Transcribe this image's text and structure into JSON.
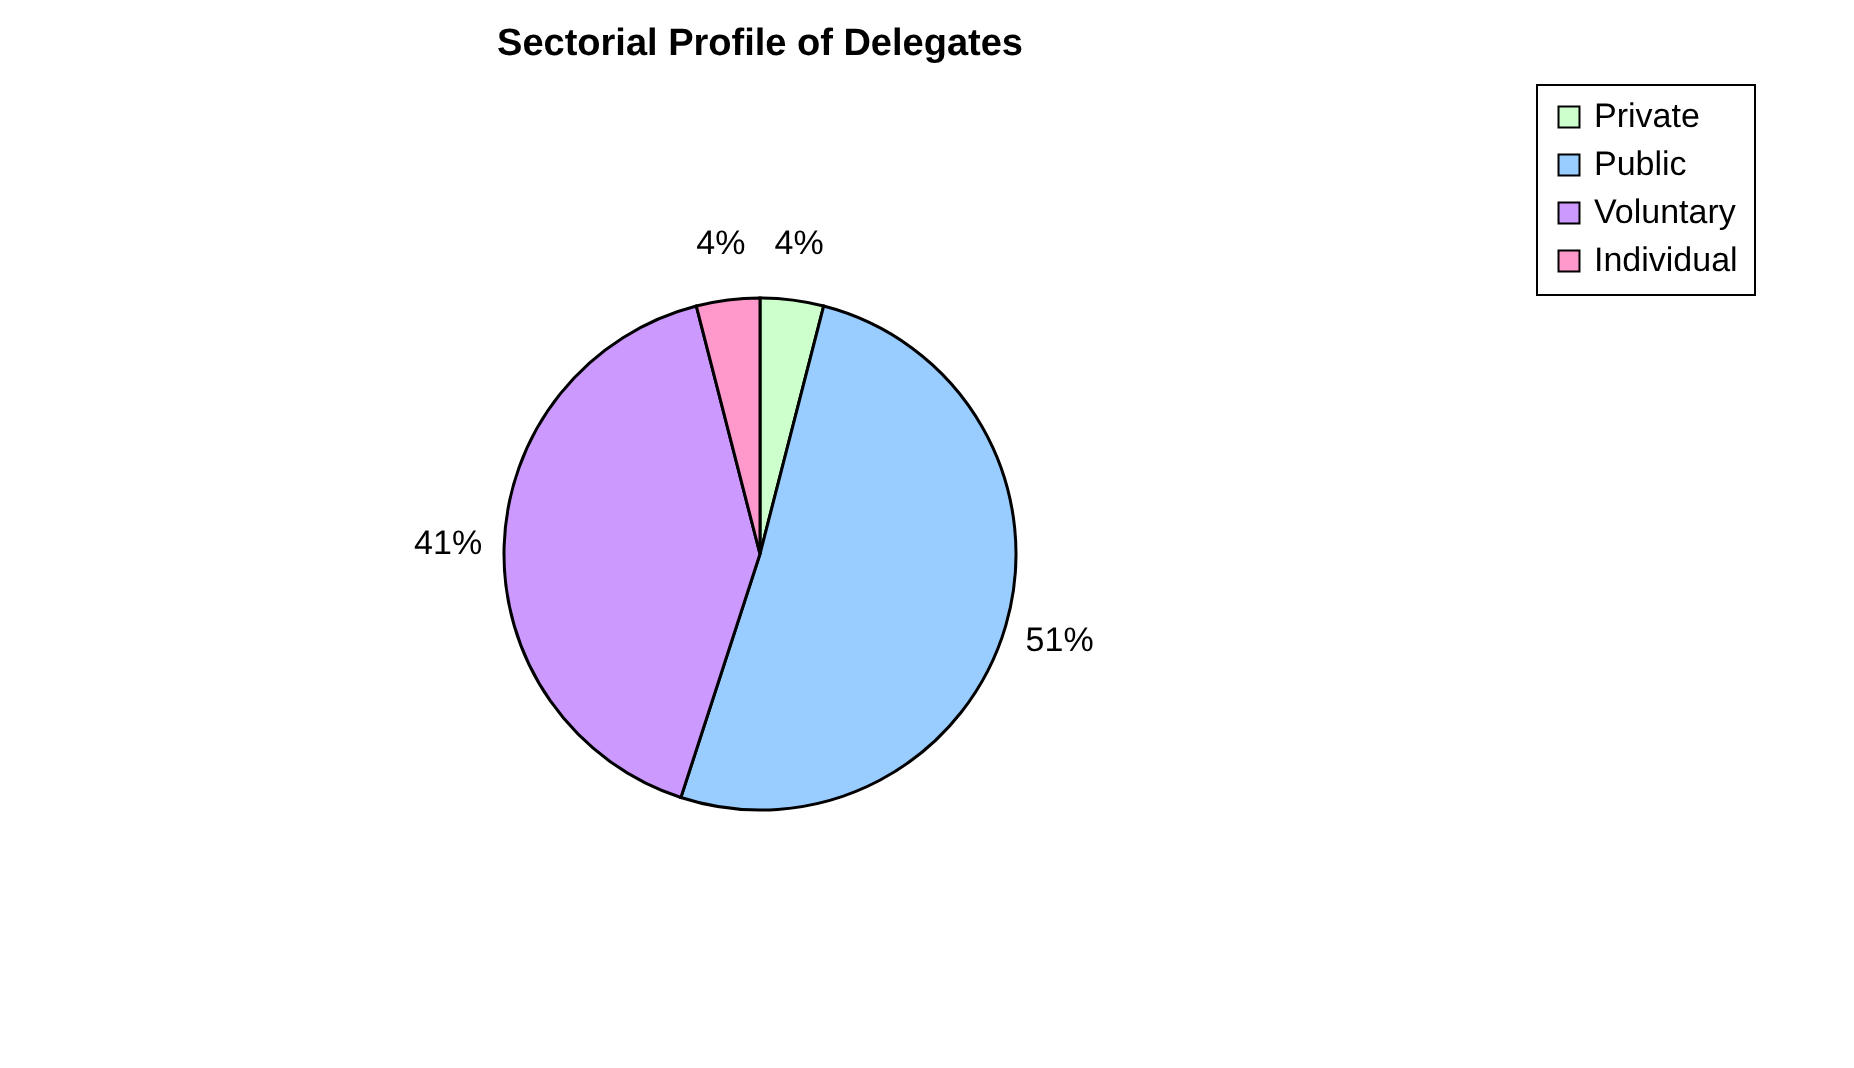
{
  "chart_data": {
    "type": "pie",
    "title": "Sectorial Profile of Delegates",
    "categories": [
      "Private",
      "Public",
      "Voluntary",
      "Individual"
    ],
    "values": [
      4,
      51,
      41,
      4
    ],
    "colors": [
      "#ccffcc",
      "#99ccff",
      "#cc99ff",
      "#ff99cc"
    ],
    "value_labels": [
      "4%",
      "51%",
      "41%",
      "4%"
    ],
    "legend": "right"
  }
}
